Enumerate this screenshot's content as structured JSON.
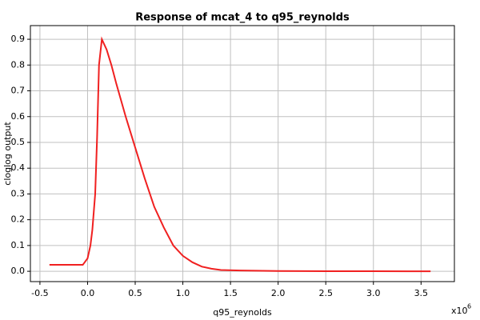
{
  "chart_data": {
    "type": "line",
    "title": "Response of mcat_4 to q95_reynolds",
    "x_label": "q95_reynolds",
    "y_label": "cloglog output",
    "x_multiplier": "x10",
    "x_multiplier_exponent": "6",
    "x": [
      -0.4,
      -0.05,
      0,
      0.03,
      0.05,
      0.08,
      0.1,
      0.12,
      0.15,
      0.2,
      0.25,
      0.3,
      0.4,
      0.5,
      0.6,
      0.7,
      0.8,
      0.9,
      1.0,
      1.1,
      1.2,
      1.3,
      1.4,
      1.6,
      2.0,
      2.5,
      3.0,
      3.6
    ],
    "series": [
      {
        "name": "cloglog output",
        "color": "#f02020",
        "values": [
          0.025,
          0.025,
          0.05,
          0.1,
          0.16,
          0.3,
          0.52,
          0.8,
          0.9,
          0.86,
          0.8,
          0.73,
          0.6,
          0.48,
          0.36,
          0.25,
          0.17,
          0.1,
          0.06,
          0.035,
          0.018,
          0.01,
          0.005,
          0.003,
          0.001,
          0.0005,
          0.0002,
          0
        ]
      }
    ],
    "xlim": [
      -0.6,
      3.85
    ],
    "ylim": [
      -0.04,
      0.953
    ],
    "xticks": [
      -0.5,
      {
        "value": 0,
        "label": "0.0"
      },
      0.5,
      {
        "value": 1,
        "label": "1.0"
      },
      1.5,
      {
        "value": 2,
        "label": "2.0"
      },
      2.5,
      {
        "value": 3,
        "label": "3.0"
      },
      3.5
    ],
    "yticks": [
      {
        "value": 0,
        "label": "0.0"
      },
      0.1,
      0.2,
      0.3,
      0.4,
      0.5,
      0.6,
      0.7,
      0.8,
      0.9
    ],
    "grid": true
  }
}
